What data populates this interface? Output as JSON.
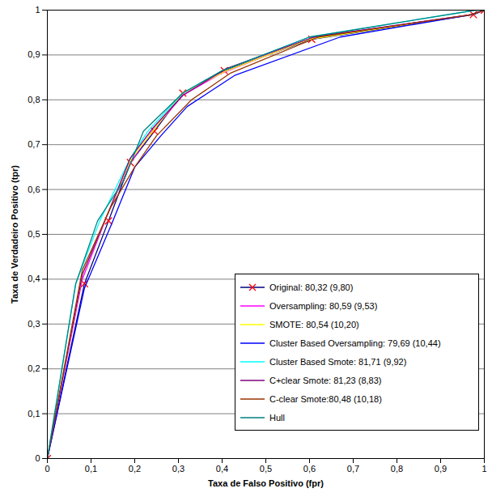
{
  "chart_data": {
    "type": "line",
    "xlabel": "Taxa de Falso Positivo (fpr)",
    "ylabel": "Taxa de Verdadeiro Positivo (tpr)",
    "xlim": [
      0,
      1
    ],
    "ylim": [
      0,
      1
    ],
    "xticks": [
      0,
      {
        "value": 0.1,
        "label": "0,1"
      },
      {
        "value": 0.2,
        "label": "0,2"
      },
      {
        "value": 0.3,
        "label": "0,3"
      },
      {
        "value": 0.4,
        "label": "0,4"
      },
      {
        "value": 0.5,
        "label": "0,5"
      },
      {
        "value": 0.6,
        "label": "0,6"
      },
      {
        "value": 0.7,
        "label": "0,7"
      },
      {
        "value": 0.8,
        "label": "0,8"
      },
      {
        "value": 0.9,
        "label": "0,9"
      },
      1
    ],
    "yticks": [
      0,
      {
        "value": 0.1,
        "label": "0,1"
      },
      {
        "value": 0.2,
        "label": "0,2"
      },
      {
        "value": 0.3,
        "label": "0,3"
      },
      {
        "value": 0.4,
        "label": "0,4"
      },
      {
        "value": 0.5,
        "label": "0,5"
      },
      {
        "value": 0.6,
        "label": "0,6"
      },
      {
        "value": 0.7,
        "label": "0,7"
      },
      {
        "value": 0.8,
        "label": "0,8"
      },
      {
        "value": 0.9,
        "label": "0,9"
      },
      1
    ],
    "grid": true,
    "legend": "bottom-right",
    "series": [
      {
        "name": "Original: 80,32 (9,80)",
        "color": "#000080",
        "marker": "x",
        "x": [
          0,
          0.085,
          0.14,
          0.19,
          0.245,
          0.31,
          0.405,
          0.605,
          0.975,
          1
        ],
        "values": [
          0,
          0.39,
          0.53,
          0.66,
          0.73,
          0.815,
          0.865,
          0.935,
          0.99,
          1
        ]
      },
      {
        "name": "Oversampling: 80,59 (9,53)",
        "color": "#ff00ff",
        "x": [
          0,
          0.08,
          0.14,
          0.19,
          0.24,
          0.31,
          0.4,
          0.61,
          0.97,
          1
        ],
        "values": [
          0,
          0.4,
          0.55,
          0.66,
          0.73,
          0.81,
          0.86,
          0.94,
          0.99,
          1
        ]
      },
      {
        "name": "SMOTE: 80,54 (10,20)",
        "color": "#ffff00",
        "x": [
          0,
          0.08,
          0.14,
          0.19,
          0.245,
          0.31,
          0.41,
          0.6,
          0.97,
          1
        ],
        "values": [
          0,
          0.41,
          0.55,
          0.665,
          0.735,
          0.815,
          0.865,
          0.935,
          0.99,
          1
        ]
      },
      {
        "name": "Cluster Based Oversampling: 79,69 (10,44)",
        "color": "#0000ff",
        "x": [
          0,
          0.085,
          0.15,
          0.2,
          0.26,
          0.32,
          0.43,
          0.67,
          0.97,
          1
        ],
        "values": [
          0,
          0.38,
          0.53,
          0.65,
          0.72,
          0.785,
          0.855,
          0.94,
          0.99,
          1
        ]
      },
      {
        "name": "Cluster Based Smote: 81,71 (9,92)",
        "color": "#00ffff",
        "x": [
          0,
          0.065,
          0.12,
          0.19,
          0.23,
          0.31,
          0.4,
          0.6,
          0.98,
          1
        ],
        "values": [
          0,
          0.39,
          0.53,
          0.67,
          0.73,
          0.815,
          0.865,
          0.94,
          1,
          1
        ]
      },
      {
        "name": "C+clear Smote: 81,23 (8,83)",
        "color": "#800080",
        "x": [
          0,
          0.08,
          0.14,
          0.19,
          0.24,
          0.31,
          0.41,
          0.61,
          0.97,
          1
        ],
        "values": [
          0,
          0.41,
          0.55,
          0.67,
          0.735,
          0.81,
          0.87,
          0.94,
          0.99,
          1
        ]
      },
      {
        "name": "C-clear Smote:80,48 (10,18)",
        "color": "#993300",
        "x": [
          0,
          0.08,
          0.145,
          0.2,
          0.25,
          0.33,
          0.42,
          0.62,
          0.97,
          1
        ],
        "values": [
          0,
          0.42,
          0.56,
          0.65,
          0.72,
          0.8,
          0.86,
          0.94,
          0.99,
          1
        ]
      },
      {
        "name": "Hull",
        "color": "#008080",
        "x": [
          0,
          0.065,
          0.115,
          0.175,
          0.22,
          0.31,
          0.4,
          0.6,
          0.98,
          1
        ],
        "values": [
          0,
          0.39,
          0.53,
          0.62,
          0.73,
          0.815,
          0.865,
          0.94,
          1,
          1
        ]
      }
    ]
  }
}
